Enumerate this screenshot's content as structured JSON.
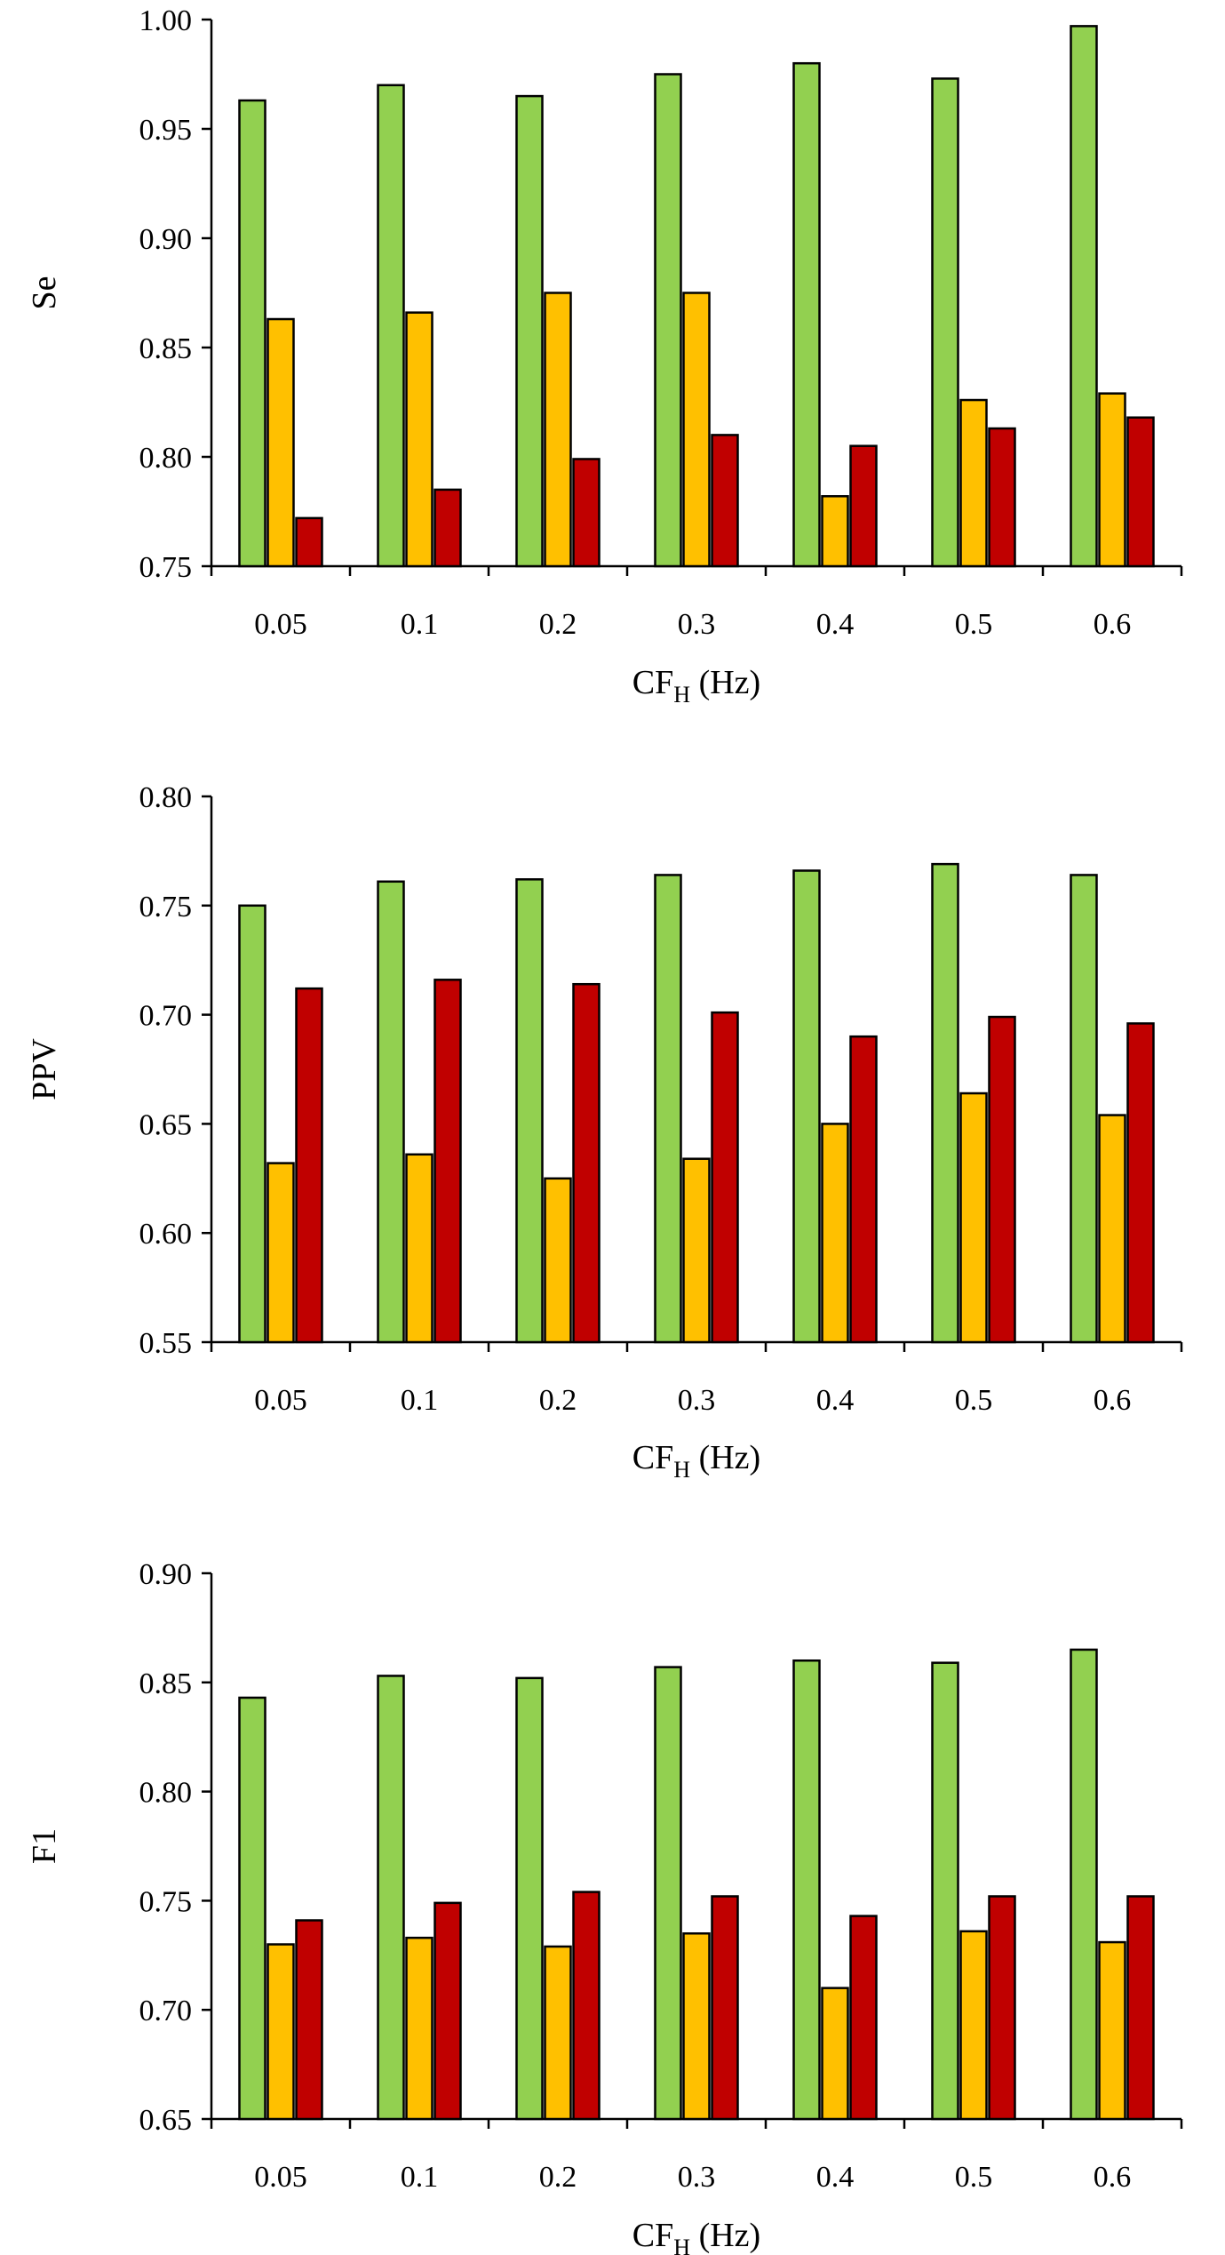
{
  "colors": {
    "series_1": "#92d050",
    "series_2": "#ffc000",
    "series_3": "#c00000"
  },
  "chart_data": [
    {
      "type": "bar",
      "categories": [
        "0.05",
        "0.1",
        "0.2",
        "0.3",
        "0.4",
        "0.5",
        "0.6"
      ],
      "ylabel": "Se",
      "xlabel": {
        "main": "CF",
        "sub": "H",
        "unit": " (Hz)"
      },
      "ylim": [
        0.75,
        1.0
      ],
      "yticks": [
        "0.75",
        "0.80",
        "0.85",
        "0.90",
        "0.95",
        "1.00"
      ],
      "grid": false,
      "series": [
        {
          "values": [
            0.963,
            0.97,
            0.965,
            0.975,
            0.98,
            0.973,
            0.997
          ]
        },
        {
          "values": [
            0.863,
            0.866,
            0.875,
            0.875,
            0.782,
            0.826,
            0.829
          ]
        },
        {
          "values": [
            0.772,
            0.785,
            0.799,
            0.81,
            0.805,
            0.813,
            0.818
          ]
        }
      ]
    },
    {
      "type": "bar",
      "categories": [
        "0.05",
        "0.1",
        "0.2",
        "0.3",
        "0.4",
        "0.5",
        "0.6"
      ],
      "ylabel": "PPV",
      "xlabel": {
        "main": "CF",
        "sub": "H",
        "unit": " (Hz)"
      },
      "ylim": [
        0.55,
        0.8
      ],
      "yticks": [
        "0.55",
        "0.60",
        "0.65",
        "0.70",
        "0.75",
        "0.80"
      ],
      "grid": false,
      "series": [
        {
          "values": [
            0.75,
            0.761,
            0.762,
            0.764,
            0.766,
            0.769,
            0.764
          ]
        },
        {
          "values": [
            0.632,
            0.636,
            0.625,
            0.634,
            0.65,
            0.664,
            0.654
          ]
        },
        {
          "values": [
            0.712,
            0.716,
            0.714,
            0.701,
            0.69,
            0.699,
            0.696
          ]
        }
      ]
    },
    {
      "type": "bar",
      "categories": [
        "0.05",
        "0.1",
        "0.2",
        "0.3",
        "0.4",
        "0.5",
        "0.6"
      ],
      "ylabel": "F1",
      "xlabel": {
        "main": "CF",
        "sub": "H",
        "unit": " (Hz)"
      },
      "ylim": [
        0.65,
        0.9
      ],
      "yticks": [
        "0.65",
        "0.70",
        "0.75",
        "0.80",
        "0.85",
        "0.90"
      ],
      "grid": false,
      "series": [
        {
          "values": [
            0.843,
            0.853,
            0.852,
            0.857,
            0.86,
            0.859,
            0.865
          ]
        },
        {
          "values": [
            0.73,
            0.733,
            0.729,
            0.735,
            0.71,
            0.736,
            0.731
          ]
        },
        {
          "values": [
            0.741,
            0.749,
            0.754,
            0.752,
            0.743,
            0.752,
            0.752
          ]
        }
      ]
    }
  ]
}
